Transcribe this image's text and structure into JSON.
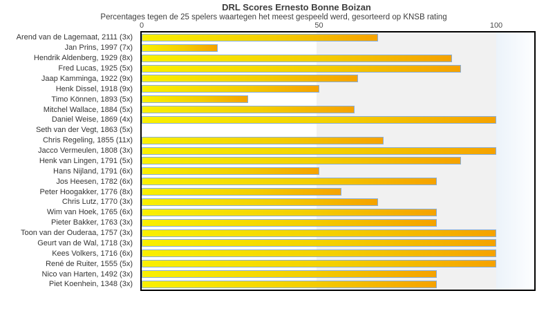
{
  "chart_data": {
    "type": "bar",
    "orientation": "horizontal",
    "title": "DRL Scores Ernesto Bonne Boizan",
    "subtitle": "Percentages tegen de 25 spelers waartegen het meest gespeeld werd, gesorteerd op KNSB rating",
    "categories": [
      "Arend van de Lagemaat, 2111 (3x)",
      "Jan Prins, 1997 (7x)",
      "Hendrik Aldenberg, 1929 (8x)",
      "Fred Lucas, 1925 (5x)",
      "Jaap Kamminga, 1922 (9x)",
      "Henk Dissel, 1918 (9x)",
      "Timo Können, 1893 (5x)",
      "Mitchel Wallace, 1884 (5x)",
      "Daniel Weise, 1869 (4x)",
      "Seth van der Vegt, 1863 (5x)",
      "Chris Regeling, 1855 (11x)",
      "Jacco Vermeulen, 1808 (3x)",
      "Henk van Lingen, 1791 (5x)",
      "Hans Nijland, 1791 (6x)",
      "Jos Heesen, 1782 (6x)",
      "Peter Hoogakker, 1776 (8x)",
      "Chris Lutz, 1770 (3x)",
      "Wim van Hoek, 1765 (6x)",
      "Pieter Bakker, 1763 (3x)",
      "Toon van der Ouderaa, 1757 (3x)",
      "Geurt van de Wal, 1718 (3x)",
      "Kees Volkers, 1716 (6x)",
      "René de Ruiter, 1555 (5x)",
      "Nico van Harten, 1492 (3x)",
      "Piet Koenhein, 1348 (3x)"
    ],
    "values": [
      66.7,
      21.4,
      87.5,
      90,
      61.1,
      50,
      30,
      60,
      100,
      0,
      68.2,
      100,
      90,
      50,
      83.3,
      56.3,
      66.7,
      83.3,
      83.3,
      100,
      100,
      100,
      100,
      83.3,
      83.3
    ],
    "x_ticks": [
      "0",
      "50",
      "100"
    ],
    "x_tick_values": [
      0,
      50,
      100
    ],
    "xlim": [
      0,
      110.7
    ],
    "ylabel": "",
    "xlabel": "",
    "grid": "band shading 50-100",
    "legend_position": "none",
    "colors": {
      "bar_gradient_start": "#f9f000",
      "bar_gradient_mid": "#f4cf00",
      "bar_gradient_end": "#f5a200",
      "bar_border": "#86aedd",
      "band_50_100": "#f1f1f1",
      "band_over_100_start": "#ecf3fa",
      "plot_border": "#000000",
      "text": "#3d3d3d",
      "tick_text": "#4a4a4a"
    }
  }
}
